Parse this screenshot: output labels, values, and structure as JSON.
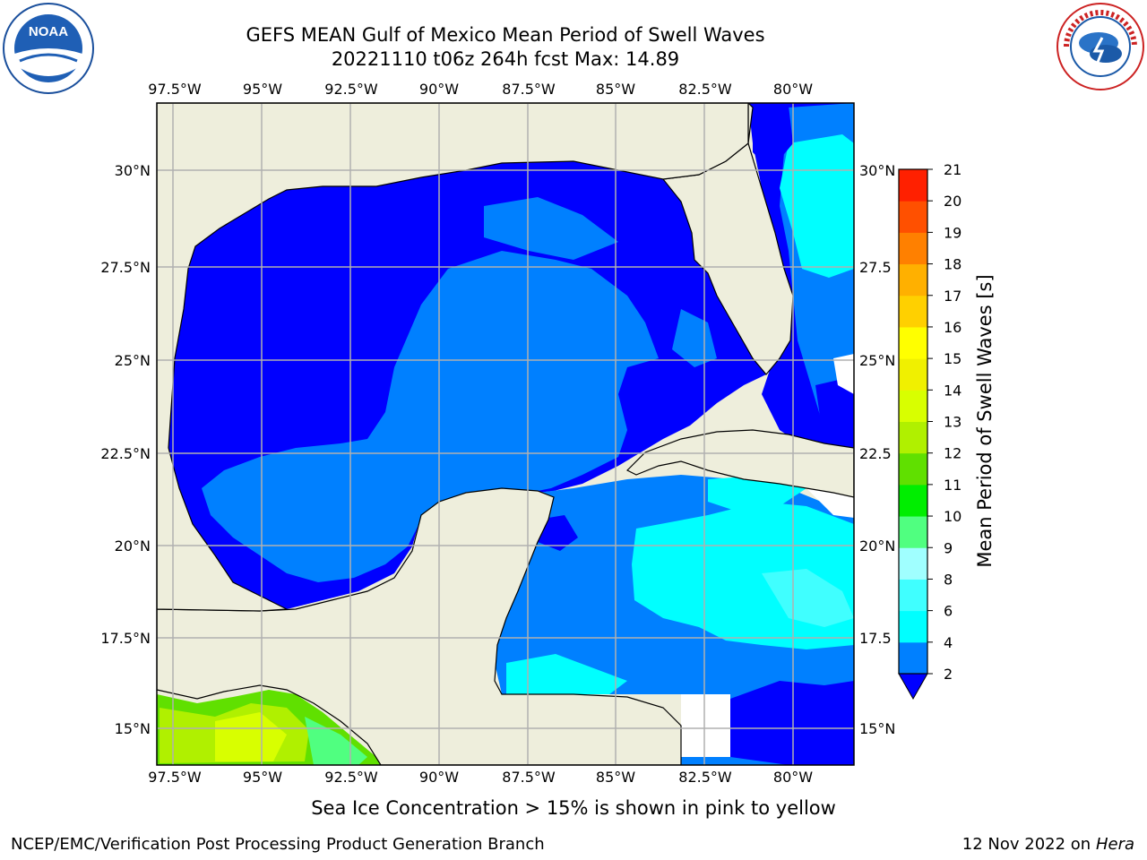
{
  "title": {
    "line1": "GEFS MEAN Gulf of Mexico Mean Period of Swell Waves",
    "line2": "20221110 t06z 264h fcst   Max: 14.89"
  },
  "logos": {
    "left": "noaa-logo",
    "right": "nws-logo"
  },
  "map": {
    "lon_labels": [
      "97.5°W",
      "95°W",
      "92.5°W",
      "90°W",
      "87.5°W",
      "85°W",
      "82.5°W",
      "80°W"
    ],
    "lat_labels_left": [
      "30°N",
      "27.5°N",
      "25°N",
      "22.5°N",
      "20°N",
      "17.5°N",
      "15°N"
    ],
    "lat_labels_right": [
      "30°N",
      "27.5",
      "25°N",
      "22.5",
      "20°N",
      "17.5",
      "15°N"
    ],
    "colors": {
      "land": "#eeeedc",
      "grid": "#b0b0b0",
      "coast": "#000000"
    }
  },
  "colorbar": {
    "label": "Mean Period of Swell Waves [s]",
    "ticks": [
      "2",
      "4",
      "6",
      "8",
      "9",
      "10",
      "11",
      "12",
      "13",
      "14",
      "15",
      "16",
      "17",
      "18",
      "19",
      "20",
      "21"
    ],
    "colors": [
      "#0000ff",
      "#0080ff",
      "#00ffff",
      "#40ffff",
      "#a0ffff",
      "#50ff80",
      "#00ee00",
      "#60e000",
      "#b0f000",
      "#d8ff00",
      "#f0f000",
      "#ffff00",
      "#ffd000",
      "#ffb000",
      "#ff8000",
      "#ff5000",
      "#ff2000",
      "#ff0000"
    ]
  },
  "footer": {
    "note": "Sea Ice Concentration > 15% is shown in pink to yellow",
    "branch": "NCEP/EMC/Verification Post Processing Product Generation Branch",
    "date": "12 Nov 2022 on",
    "machine": "Hera"
  }
}
